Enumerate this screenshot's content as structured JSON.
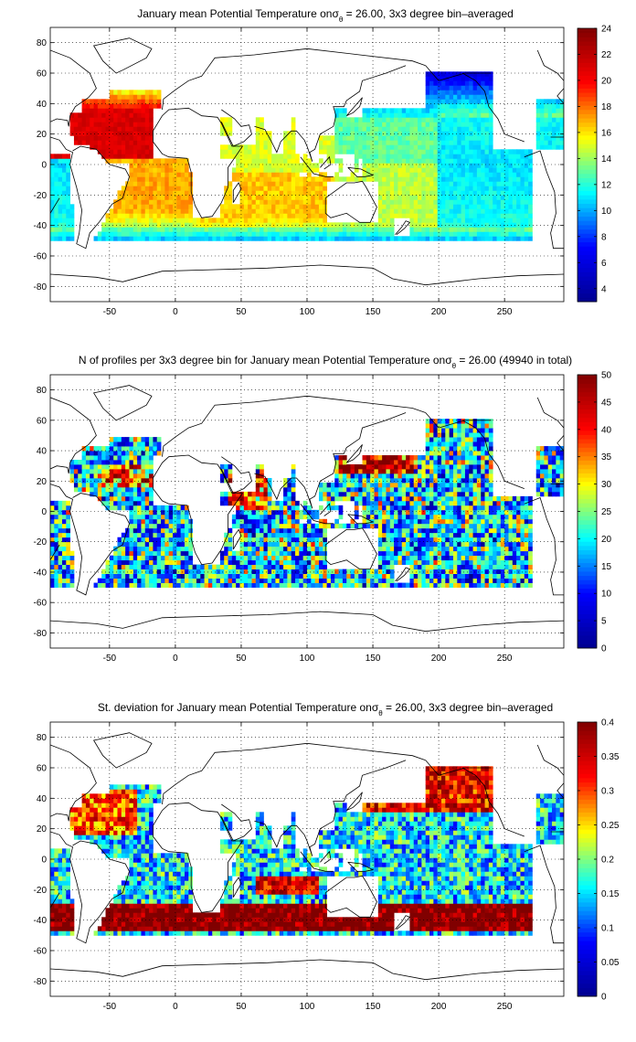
{
  "figure": {
    "background": "#ffffff"
  },
  "colormap": {
    "name": "jet",
    "stops": [
      "#00008f",
      "#0000ff",
      "#00ffff",
      "#ffff00",
      "#ff0000",
      "#800000"
    ]
  },
  "map_style": {
    "ocean_missing": "#ffffff",
    "coast_color": "#000000",
    "grid": "dotted"
  },
  "chart_data": [
    {
      "type": "heatmap",
      "title_parts": [
        "January ",
        "mean",
        " Potential Temperature ",
        "on",
        "σ",
        "θ",
        " = 26.00, 3x3 degree bin–averaged"
      ],
      "xlabel": "",
      "ylabel": "",
      "x_ticks": [
        -50,
        0,
        50,
        100,
        150,
        200,
        250
      ],
      "y_ticks": [
        -80,
        -60,
        -40,
        -20,
        0,
        20,
        40,
        60,
        80
      ],
      "xlim": [
        -95,
        295
      ],
      "ylim": [
        -90,
        90
      ],
      "grid": true,
      "colorbar": {
        "min": 3,
        "max": 24,
        "ticks": [
          4,
          6,
          8,
          10,
          12,
          14,
          16,
          18,
          20,
          22,
          24
        ]
      },
      "field": "temperature",
      "basin_values": {
        "north_atlantic": 21,
        "south_atlantic": 17,
        "indian": 16.5,
        "west_pacific": 13,
        "east_pacific": 11,
        "north_pacific": 6,
        "southern_band": 10,
        "equatorial_indian": 15
      }
    },
    {
      "type": "heatmap",
      "title_parts": [
        "N of profiles per 3x3 degree bin for January ",
        "mean",
        " Potential Temperature ",
        "on",
        "σ",
        "θ",
        " = 26.00 (49940 in total)"
      ],
      "xlabel": "",
      "ylabel": "",
      "x_ticks": [
        -50,
        0,
        50,
        100,
        150,
        200,
        250
      ],
      "y_ticks": [
        -80,
        -60,
        -40,
        -20,
        0,
        20,
        40,
        60,
        80
      ],
      "xlim": [
        -95,
        295
      ],
      "ylim": [
        -90,
        90
      ],
      "grid": true,
      "colorbar": {
        "min": 0,
        "max": 50,
        "ticks": [
          0,
          5,
          10,
          15,
          20,
          25,
          30,
          35,
          40,
          45,
          50
        ]
      },
      "field": "count",
      "total_profiles": 49940
    },
    {
      "type": "heatmap",
      "title_parts": [
        "St. deviation for January ",
        "mean",
        " Potential Temperature ",
        "on",
        "σ",
        "θ",
        " = 26.00, 3x3 degree bin–averaged"
      ],
      "xlabel": "",
      "ylabel": "",
      "x_ticks": [
        -50,
        0,
        50,
        100,
        150,
        200,
        250
      ],
      "y_ticks": [
        -80,
        -60,
        -40,
        -20,
        0,
        20,
        40,
        60,
        80
      ],
      "xlim": [
        -95,
        295
      ],
      "ylim": [
        -90,
        90
      ],
      "grid": true,
      "colorbar": {
        "min": 0,
        "max": 0.4,
        "ticks": [
          0,
          0.05,
          0.1,
          0.15,
          0.2,
          0.25,
          0.3,
          0.35,
          0.4
        ]
      },
      "field": "stddev"
    }
  ]
}
